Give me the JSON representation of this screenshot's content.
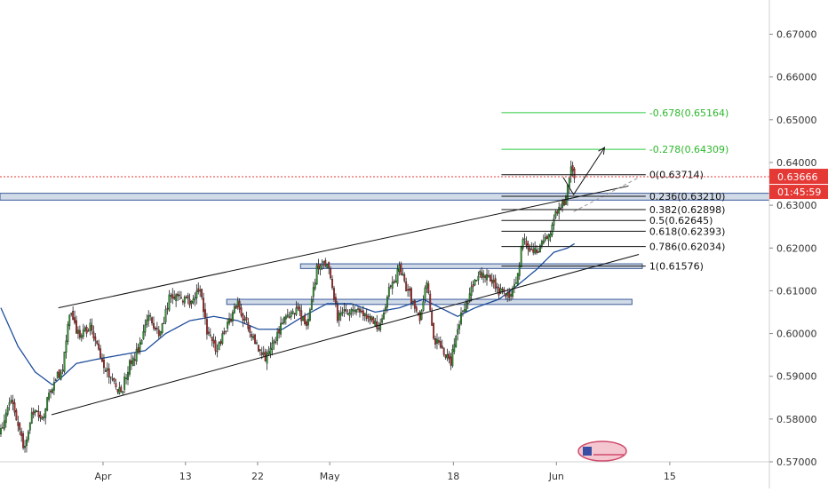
{
  "chart_data": {
    "type": "candlestick",
    "title": "",
    "xlabel": "",
    "ylabel": "",
    "ylim": [
      0.57,
      0.678
    ],
    "y_ticks": [
      {
        "value": 0.67,
        "label": "0.67000"
      },
      {
        "value": 0.66,
        "label": "0.66000"
      },
      {
        "value": 0.65,
        "label": "0.65000"
      },
      {
        "value": 0.64,
        "label": "0.64000"
      },
      {
        "value": 0.63,
        "label": "0.63000"
      },
      {
        "value": 0.62,
        "label": "0.62000"
      },
      {
        "value": 0.61,
        "label": "0.61000"
      },
      {
        "value": 0.6,
        "label": "0.60000"
      },
      {
        "value": 0.59,
        "label": "0.59000"
      },
      {
        "value": 0.58,
        "label": "0.58000"
      },
      {
        "value": 0.57,
        "label": "0.57000"
      }
    ],
    "x_ticks": [
      {
        "index": 60,
        "label": "Apr"
      },
      {
        "index": 108,
        "label": "13"
      },
      {
        "index": 150,
        "label": "22"
      },
      {
        "index": 192,
        "label": "May"
      },
      {
        "index": 264,
        "label": "18"
      },
      {
        "index": 324,
        "label": "Jun"
      },
      {
        "index": 390,
        "label": "15"
      }
    ],
    "x_range": [
      0,
      448
    ],
    "current_price": {
      "value": 0.63666,
      "label": "0.63666",
      "countdown": "01:45:59"
    },
    "candle_anchors": [
      [
        0,
        0.577
      ],
      [
        6,
        0.585
      ],
      [
        10,
        0.578
      ],
      [
        14,
        0.573
      ],
      [
        18,
        0.582
      ],
      [
        24,
        0.58
      ],
      [
        30,
        0.588
      ],
      [
        36,
        0.592
      ],
      [
        40,
        0.605
      ],
      [
        46,
        0.599
      ],
      [
        52,
        0.602
      ],
      [
        58,
        0.594
      ],
      [
        64,
        0.59
      ],
      [
        70,
        0.586
      ],
      [
        74,
        0.592
      ],
      [
        80,
        0.596
      ],
      [
        86,
        0.605
      ],
      [
        92,
        0.599
      ],
      [
        98,
        0.608
      ],
      [
        104,
        0.609
      ],
      [
        110,
        0.607
      ],
      [
        116,
        0.61
      ],
      [
        120,
        0.6
      ],
      [
        126,
        0.596
      ],
      [
        132,
        0.602
      ],
      [
        138,
        0.607
      ],
      [
        142,
        0.603
      ],
      [
        148,
        0.598
      ],
      [
        154,
        0.594
      ],
      [
        160,
        0.599
      ],
      [
        166,
        0.604
      ],
      [
        172,
        0.606
      ],
      [
        178,
        0.602
      ],
      [
        184,
        0.615
      ],
      [
        190,
        0.617
      ],
      [
        196,
        0.604
      ],
      [
        204,
        0.606
      ],
      [
        212,
        0.605
      ],
      [
        220,
        0.601
      ],
      [
        226,
        0.61
      ],
      [
        232,
        0.615
      ],
      [
        238,
        0.609
      ],
      [
        244,
        0.603
      ],
      [
        248,
        0.612
      ],
      [
        252,
        0.599
      ],
      [
        258,
        0.596
      ],
      [
        262,
        0.593
      ],
      [
        266,
        0.602
      ],
      [
        272,
        0.608
      ],
      [
        278,
        0.614
      ],
      [
        284,
        0.613
      ],
      [
        290,
        0.61
      ],
      [
        296,
        0.609
      ],
      [
        300,
        0.612
      ],
      [
        304,
        0.622
      ],
      [
        308,
        0.619
      ],
      [
        314,
        0.62
      ],
      [
        320,
        0.623
      ],
      [
        324,
        0.629
      ],
      [
        328,
        0.631
      ],
      [
        332,
        0.638
      ],
      [
        334,
        0.636
      ]
    ],
    "moving_average": [
      [
        0,
        0.606
      ],
      [
        10,
        0.597
      ],
      [
        20,
        0.591
      ],
      [
        30,
        0.588
      ],
      [
        36,
        0.59
      ],
      [
        44,
        0.593
      ],
      [
        56,
        0.594
      ],
      [
        70,
        0.595
      ],
      [
        84,
        0.596
      ],
      [
        96,
        0.6
      ],
      [
        110,
        0.603
      ],
      [
        124,
        0.604
      ],
      [
        138,
        0.603
      ],
      [
        150,
        0.601
      ],
      [
        164,
        0.601
      ],
      [
        176,
        0.604
      ],
      [
        190,
        0.607
      ],
      [
        204,
        0.607
      ],
      [
        218,
        0.605
      ],
      [
        232,
        0.606
      ],
      [
        246,
        0.608
      ],
      [
        256,
        0.606
      ],
      [
        266,
        0.604
      ],
      [
        276,
        0.606
      ],
      [
        290,
        0.608
      ],
      [
        300,
        0.611
      ],
      [
        312,
        0.615
      ],
      [
        322,
        0.619
      ],
      [
        330,
        0.62
      ],
      [
        334,
        0.621
      ]
    ],
    "channel_lines": [
      {
        "from": [
          30,
          0.581
        ],
        "to": [
          372,
          0.6185
        ]
      },
      {
        "from": [
          34,
          0.606
        ],
        "to": [
          366,
          0.6345
        ]
      }
    ],
    "breakout_line": {
      "from": [
        334,
        0.6285
      ],
      "to": [
        372,
        0.6365
      ]
    },
    "zones": [
      {
        "x0": 0,
        "x1": 448,
        "y0": 0.6312,
        "y1": 0.6328
      },
      {
        "x0": 175,
        "x1": 374,
        "y0": 0.6152,
        "y1": 0.6163
      },
      {
        "x0": 132,
        "x1": 368,
        "y0": 0.6068,
        "y1": 0.608
      }
    ],
    "fibonacci": {
      "x0": 292,
      "x1": 376,
      "levels": [
        {
          "value": 0.63714,
          "label": "0(0.63714)"
        },
        {
          "value": 0.6321,
          "label": "0.236(0.63210)"
        },
        {
          "value": 0.62898,
          "label": "0.382(0.62898)"
        },
        {
          "value": 0.62645,
          "label": "0.5(0.62645)"
        },
        {
          "value": 0.62393,
          "label": "0.618(0.62393)"
        },
        {
          "value": 0.62034,
          "label": "0.786(0.62034)"
        },
        {
          "value": 0.61576,
          "label": "1(0.61576)"
        }
      ]
    },
    "targets": [
      {
        "value": 0.65164,
        "label": "-0.678(0.65164)"
      },
      {
        "value": 0.64309,
        "label": "-0.278(0.64309)"
      }
    ],
    "arrow_path": [
      [
        328,
        0.6365
      ],
      [
        334,
        0.6325
      ],
      [
        352,
        0.6435
      ]
    ],
    "colors": {
      "up": "#26a126",
      "down": "#c62828",
      "wick": "#222222",
      "moving_average": "#1f4e9c",
      "target": "#2ecc40",
      "current_price": "#e53935",
      "zone_fill": "#c9d3e3",
      "zone_stroke": "#3a5a9a"
    }
  }
}
